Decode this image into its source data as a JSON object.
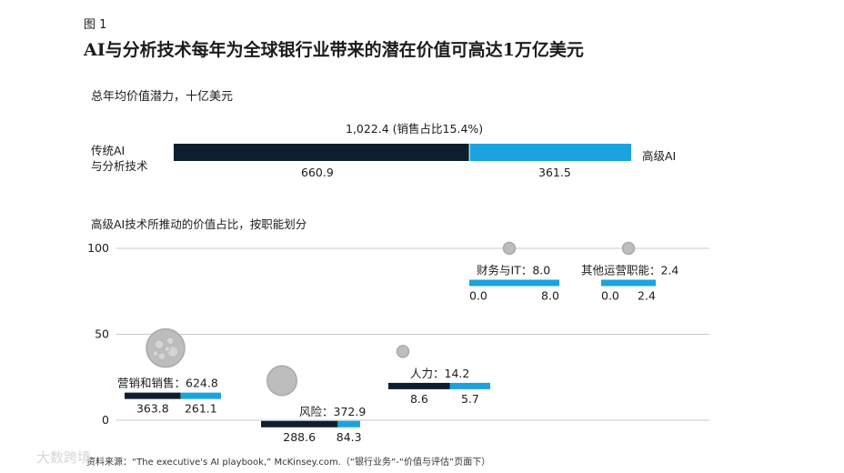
{
  "figure_label": "图 1",
  "title": "AI与分析技术每年为全球银行业带来的潜在价值可高达1万亿美元",
  "top_subtitle": "总年均价值潜力，十亿美元",
  "bottom_subtitle": "高级AI技术所推动的价值占比，按职能划分",
  "source_text": "资料来源：“The executive's AI playbook,” McKinsey.com.（“银行业务”-“价值与评估”页面下）",
  "watermark_text": "大数跨境",
  "colors": {
    "traditional": "#0f1e2c",
    "advanced": "#1aa3e0",
    "bubble": "#bdbdbd",
    "axis": "#c8c8c8"
  },
  "chart_data": [
    {
      "type": "bar",
      "orientation": "horizontal-stacked",
      "title": "总年均价值潜力，十亿美元",
      "total_label": "1,022.4 (销售占比15.4%)",
      "total": 1022.4,
      "left_label_lines": [
        "传统AI",
        "与分析技术"
      ],
      "right_label": "高级AI",
      "series": [
        {
          "name": "传统AI与分析技术",
          "value": 660.9,
          "label": "660.9"
        },
        {
          "name": "高级AI",
          "value": 361.5,
          "label": "361.5"
        }
      ]
    },
    {
      "type": "scatter",
      "subtype": "bubble-with-stacked-bars",
      "title": "高级AI技术所推动的价值占比，按职能划分",
      "ylim": [
        0,
        100
      ],
      "yticks": [
        "0",
        "50",
        "100"
      ],
      "points": [
        {
          "name": "营销和销售",
          "total": 624.8,
          "y": 42,
          "traditional": 363.8,
          "advanced": 261.1,
          "total_label": "营销和销售：624.8",
          "trad_label": "363.8",
          "adv_label": "261.1"
        },
        {
          "name": "风险",
          "total": 372.9,
          "y": 23,
          "traditional": 288.6,
          "advanced": 84.3,
          "total_label": "风险：372.9",
          "trad_label": "288.6",
          "adv_label": "84.3"
        },
        {
          "name": "人力",
          "total": 14.2,
          "y": 40,
          "traditional": 8.6,
          "advanced": 5.7,
          "total_label": "人力：14.2",
          "trad_label": "8.6",
          "adv_label": "5.7"
        },
        {
          "name": "财务与IT",
          "total": 8.0,
          "y": 100,
          "traditional": 0.0,
          "advanced": 8.0,
          "total_label": "财务与IT：8.0",
          "trad_label": "0.0",
          "adv_label": "8.0"
        },
        {
          "name": "其他运营职能",
          "total": 2.4,
          "y": 100,
          "traditional": 0.0,
          "advanced": 2.4,
          "total_label": "其他运营职能：2.4",
          "trad_label": "0.0",
          "adv_label": "2.4"
        }
      ]
    }
  ]
}
